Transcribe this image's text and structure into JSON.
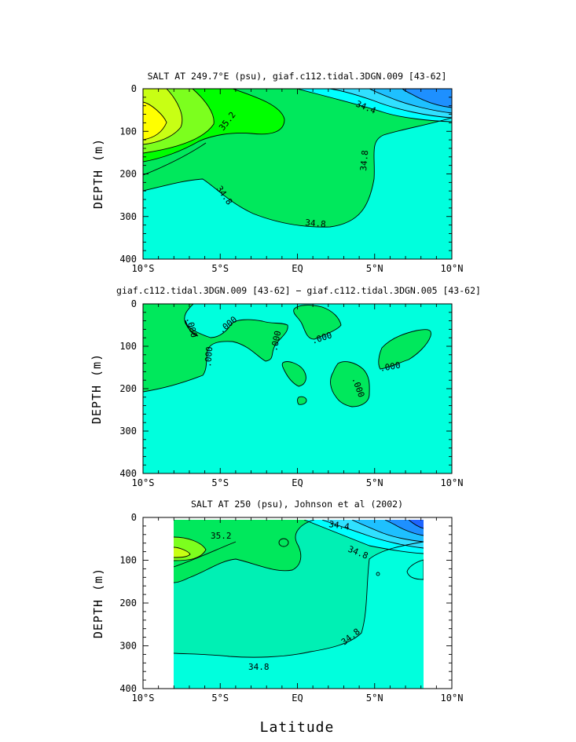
{
  "chart_data": [
    {
      "type": "contour",
      "title": "SALT AT 249.7°E (psu), giaf.c112.tidal.3DGN.009 [43-62]",
      "ylabel": "DEPTH (m)",
      "xlabel": "",
      "xlim": [
        -10,
        10
      ],
      "ylim": [
        400,
        0
      ],
      "x_ticks": [
        -10,
        -5,
        0,
        5,
        10
      ],
      "x_tick_labels": [
        "10°S",
        "5°S",
        "EQ",
        "5°N",
        "10°N"
      ],
      "y_ticks": [
        0,
        100,
        200,
        300,
        400
      ],
      "y_tick_labels": [
        "0",
        "100",
        "200",
        "300",
        "400"
      ],
      "contour_labels": [
        "35.2",
        "34.4",
        "34.8",
        "34.8",
        "34.8"
      ],
      "data_range_lat": [
        -10,
        10
      ],
      "data_range_depth": [
        0,
        400
      ],
      "colors": {
        "fresh": "#1e90ff",
        "mid": "#00ffff",
        "base": "#00ffdd",
        "green": "#00e35a",
        "bright_green": "#00ff00",
        "yellow": "#ffff00"
      }
    },
    {
      "type": "contour",
      "title": "giaf.c112.tidal.3DGN.009 [43-62] − giaf.c112.tidal.3DGN.005 [43-62]",
      "ylabel": "DEPTH (m)",
      "xlabel": "",
      "xlim": [
        -10,
        10
      ],
      "ylim": [
        400,
        0
      ],
      "x_ticks": [
        -10,
        -5,
        0,
        5,
        10
      ],
      "x_tick_labels": [
        "10°S",
        "5°S",
        "EQ",
        "5°N",
        "10°N"
      ],
      "y_ticks": [
        0,
        100,
        200,
        300,
        400
      ],
      "y_tick_labels": [
        "0",
        "100",
        "200",
        "300",
        "400"
      ],
      "contour_labels": [
        ".000",
        ".000",
        ".000",
        ".000",
        ".000",
        ".000",
        ".000"
      ],
      "data_range_lat": [
        -10,
        10
      ],
      "data_range_depth": [
        0,
        400
      ]
    },
    {
      "type": "contour",
      "title": "SALT AT 250 (psu), Johnson et al (2002)",
      "ylabel": "DEPTH (m)",
      "xlabel": "Latitude",
      "xlim": [
        -10,
        10
      ],
      "ylim": [
        400,
        0
      ],
      "x_ticks": [
        -10,
        -5,
        0,
        5,
        10
      ],
      "x_tick_labels": [
        "10°S",
        "5°S",
        "EQ",
        "5°N",
        "10°N"
      ],
      "y_ticks": [
        0,
        100,
        200,
        300,
        400
      ],
      "y_tick_labels": [
        "0",
        "100",
        "200",
        "300",
        "400"
      ],
      "contour_labels": [
        "35.2",
        "34.4",
        "34.8",
        "34.8",
        "34.8"
      ],
      "data_range_lat": [
        -8,
        8.2
      ],
      "data_range_depth": [
        10,
        400
      ]
    }
  ]
}
